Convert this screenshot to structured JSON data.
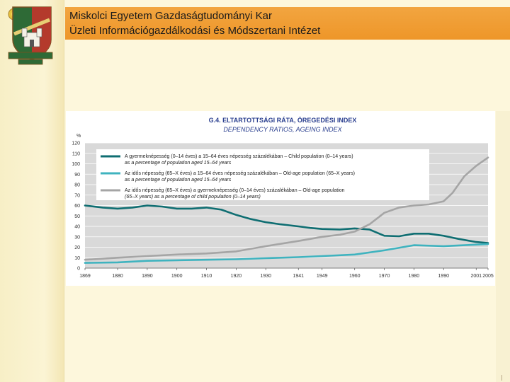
{
  "header": {
    "line1": "Miskolci Egyetem Gazdaságtudományi Kar",
    "line2": "Üzleti Információgazdálkodási és Módszertani Intézet"
  },
  "logo": {
    "icon": "university-crest-icon"
  },
  "colors": {
    "header_bar": "#f09a30",
    "series_child": "#0f6e72",
    "series_old": "#3fb3bf",
    "series_ageing": "#a5a5a5"
  },
  "chart_data": {
    "type": "line",
    "title": "G.4. ELTARTOTTSÁGI RÁTA, ÖREGEDÉSI INDEX",
    "subtitle": "DEPENDENCY RATIOS, AGEING INDEX",
    "ylabel": "%",
    "ylim": [
      0,
      120
    ],
    "yticks": [
      0,
      10,
      20,
      30,
      40,
      50,
      60,
      70,
      80,
      90,
      100,
      110,
      120
    ],
    "xlim": [
      1869,
      2005
    ],
    "xticks": [
      "1869",
      "1880",
      "1890",
      "1900",
      "1910",
      "1920",
      "1930",
      "1941",
      "1949",
      "1960",
      "1970",
      "1980",
      "1990",
      "2001",
      "2005"
    ],
    "series": [
      {
        "name": "A gyermeknépesség (0–14 éves) a 15–64 éves népesség százalékában – Child population (0–14 years) as a percentage of population aged 15–64 years",
        "legend_lines": [
          "A gyermeknépesség (0–14 éves) a 15–64 éves népesség százalékában – Child population (0–14 years)",
          "as a percentage of population aged 15–64 years"
        ],
        "x": [
          1869,
          1875,
          1880,
          1885,
          1890,
          1895,
          1900,
          1905,
          1910,
          1915,
          1920,
          1925,
          1930,
          1935,
          1941,
          1945,
          1949,
          1955,
          1960,
          1965,
          1970,
          1975,
          1980,
          1985,
          1990,
          1995,
          2001,
          2005
        ],
        "y": [
          60,
          58,
          57,
          58,
          60,
          59,
          57,
          57,
          58,
          56,
          51,
          47,
          44,
          42,
          40,
          38.5,
          37.5,
          37,
          38,
          37,
          31,
          30.5,
          33,
          33,
          31,
          28,
          25,
          24
        ]
      },
      {
        "name": "Az idős népesség (65–X éves) a 15–64 éves népesség százalékában – Old-age population (65–X years) as a percentage of population aged 15–64 years",
        "legend_lines": [
          "Az idős népesség (65–X éves) a 15–64 éves népesség százalékában – Old-age population (65–X years)",
          "as a percentage of population aged 15–64 years"
        ],
        "x": [
          1869,
          1880,
          1890,
          1900,
          1910,
          1920,
          1930,
          1941,
          1949,
          1960,
          1970,
          1980,
          1990,
          2001,
          2005
        ],
        "y": [
          5,
          5.5,
          7,
          7.5,
          8,
          8.5,
          9.5,
          10.5,
          11.5,
          13,
          17,
          22,
          21,
          22.5,
          23
        ]
      },
      {
        "name": "Az idős népesség (65–X éves) a gyermeknépesség (0–14 éves) százalékában – Old-age population (65–X years) as a percentage of child population (0–14 years)",
        "legend_lines": [
          "Az idős népesség (65–X éves) a gyermeknépesség (0–14 éves) százalékában – Old-age population",
          "(65–X years) as a percentage of child population (0–14 years)"
        ],
        "x": [
          1869,
          1875,
          1880,
          1890,
          1900,
          1910,
          1920,
          1930,
          1941,
          1949,
          1955,
          1960,
          1965,
          1970,
          1975,
          1980,
          1985,
          1990,
          1993,
          1997,
          2001,
          2005
        ],
        "y": [
          8,
          9,
          10,
          11.5,
          13,
          14,
          16,
          21,
          26,
          30,
          32,
          35,
          42,
          53,
          58,
          60,
          61,
          64,
          72,
          88,
          98,
          106
        ]
      }
    ]
  }
}
